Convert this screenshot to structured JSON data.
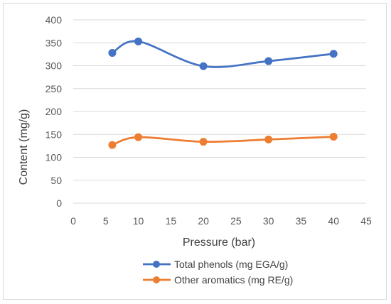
{
  "chart_data": {
    "type": "line",
    "title": "",
    "xlabel": "Pressure (bar)",
    "ylabel": "Content (mg/g)",
    "xlim": [
      0,
      45
    ],
    "ylim": [
      0,
      400
    ],
    "x_ticks": [
      0,
      5,
      10,
      15,
      20,
      25,
      30,
      35,
      40,
      45
    ],
    "y_ticks": [
      0,
      50,
      100,
      150,
      200,
      250,
      300,
      350,
      400
    ],
    "x_tick_labels": [
      "0",
      "5",
      "10",
      "15",
      "20",
      "25",
      "30",
      "35",
      "40",
      "45"
    ],
    "y_tick_labels": [
      "0",
      "50",
      "100",
      "150",
      "200",
      "250",
      "300",
      "350",
      "400"
    ],
    "grid": "horizontal",
    "smoothed": true,
    "legend_position": "bottom",
    "series": [
      {
        "name": "Total phenols (mg EGA/g)",
        "color": "#4472C4",
        "x": [
          6,
          10,
          20,
          30,
          40
        ],
        "y": [
          328,
          353,
          299,
          310,
          326
        ]
      },
      {
        "name": "Other aromatics (mg RE/g)",
        "color": "#ED7D31",
        "x": [
          6,
          10,
          20,
          30,
          40
        ],
        "y": [
          127,
          144,
          134,
          139,
          145
        ]
      }
    ]
  }
}
